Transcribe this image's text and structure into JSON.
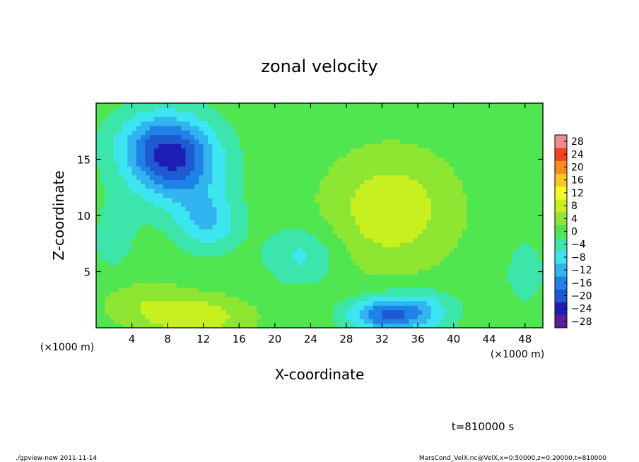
{
  "chart_data": {
    "type": "heatmap",
    "title": "zonal velocity",
    "xlabel": "X-coordinate",
    "ylabel": "Z-coordinate",
    "x_unit_label": "(×1000 m)",
    "y_unit_label": "(×1000 m)",
    "xlim": [
      0,
      50
    ],
    "ylim": [
      0,
      20
    ],
    "x_ticks": [
      4,
      8,
      12,
      16,
      20,
      24,
      28,
      32,
      36,
      40,
      44,
      48
    ],
    "y_ticks": [
      5,
      10,
      15
    ],
    "colorbar": {
      "ticks": [
        28,
        24,
        20,
        16,
        12,
        8,
        4,
        0,
        -4,
        -8,
        -12,
        -16,
        -20,
        -24,
        -28
      ],
      "tick_labels": [
        "28",
        "24",
        "20",
        "16",
        "12",
        "8",
        "4",
        "0",
        "−4",
        "−8",
        "−12",
        "−16",
        "−20",
        "−24",
        "−28"
      ],
      "range": [
        -30,
        30
      ]
    },
    "field_features": [
      {
        "x": 9,
        "z": 14.5,
        "value": -17,
        "rx": 5,
        "rz": 3.5
      },
      {
        "x": 7,
        "z": 16.5,
        "value": -11,
        "rx": 5,
        "rz": 3.0
      },
      {
        "x": 12.5,
        "z": 9.5,
        "value": -10,
        "rx": 3.5,
        "rz": 2.5
      },
      {
        "x": 23,
        "z": 6.5,
        "value": -7,
        "rx": 4,
        "rz": 2.5
      },
      {
        "x": 32,
        "z": 1.2,
        "value": -15,
        "rx": 4,
        "rz": 1.5
      },
      {
        "x": 36,
        "z": 1.5,
        "value": -10,
        "rx": 4,
        "rz": 1.8
      },
      {
        "x": 33,
        "z": 10.5,
        "value": 9,
        "rx": 7,
        "rz": 5
      },
      {
        "x": 11,
        "z": 1.0,
        "value": 9,
        "rx": 6,
        "rz": 1.8
      },
      {
        "x": 5,
        "z": 2.5,
        "value": 4,
        "rx": 5,
        "rz": 2
      },
      {
        "x": 48,
        "z": 5,
        "value": -3,
        "rx": 3,
        "rz": 4
      },
      {
        "x": 2,
        "z": 8,
        "value": -3,
        "rx": 3,
        "rz": 4
      }
    ]
  },
  "time_label": "t=810000 s",
  "footer_left": "./gpview-new  2011-11-14",
  "footer_right": "MarsCond_VelX.nc@VelX,x=0:50000,z=0:20000,t=810000"
}
